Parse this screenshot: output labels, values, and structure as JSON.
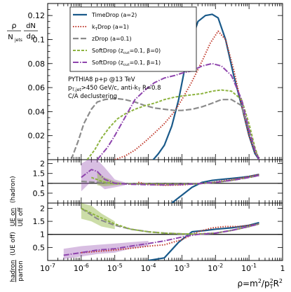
{
  "chart_data": {
    "type": "line",
    "x_scale": "log",
    "xlim": [
      1e-07,
      1
    ],
    "x_tick_labels": [
      "10^-7",
      "10^-6",
      "10^-5",
      "10^-4",
      "10^-3",
      "10^-2",
      "10^-1",
      "1"
    ],
    "xlabel": {
      "main": "ρ=m",
      "sup1": "2",
      "mid": "/p",
      "sub1": "T",
      "sup2": "2",
      "tail": "R",
      "sup3": "2"
    },
    "legend": [
      {
        "name": "TimeDrop (a=2)",
        "color": "#1a5a8a",
        "dash": "solid"
      },
      {
        "name": "kTDrop (a=1)",
        "color": "#c0392b",
        "dash": "dotted"
      },
      {
        "name": "zDrop (a=0.1)",
        "color": "#8c8c8c",
        "dash": "longdash"
      },
      {
        "name": "SoftDrop (zcut=0.1, β=0)",
        "color": "#8db33f",
        "dash": "dashed"
      },
      {
        "name": "SoftDrop (zcut=0.1, β=1)",
        "color": "#8e44ad",
        "dash": "dashdot"
      }
    ],
    "legend_labels": {
      "time": "TimeDrop (a=2)",
      "kt_pre": "k",
      "kt_sub": "T",
      "kt_post": "Drop (a=1)",
      "z": "zDrop (a=0.1)",
      "sd0_pre": "SoftDrop (z",
      "sd0_sub": "cut",
      "sd0_post": "=0.1, β=0)",
      "sd1_pre": "SoftDrop (z",
      "sd1_sub": "cut",
      "sd1_post": "=0.1, β=1)"
    },
    "annotations": {
      "line1": "PYTHIA8 p+p @13 TeV",
      "line2_pre": "p",
      "line2_sub": "T,jet",
      "line2_post": ">450 GeV/c, anti-k",
      "line2_sub2": "T",
      "line2_tail": " R=0.8",
      "line3": "C/A declustering"
    },
    "panels": [
      {
        "id": "main",
        "ylabel": {
          "num_left": "ρ",
          "den_left": "N",
          "den_sub": "jets",
          "num_right": "dN",
          "den_right": "dρ"
        },
        "ylim": [
          0,
          0.13
        ],
        "y_ticks": [
          0.02,
          0.04,
          0.06,
          0.08,
          0.1,
          0.12
        ],
        "y_tick_labels": [
          "0.02",
          "0.04",
          "0.06",
          "0.08",
          "0.1",
          "0.12"
        ],
        "series": [
          {
            "key": "time",
            "x": [
              0.00014,
              0.0002,
              0.0003,
              0.0005,
              0.0008,
              0.0012,
              0.002,
              0.003,
              0.005,
              0.008,
              0.012,
              0.02,
              0.035,
              0.06,
              0.1,
              0.15,
              0.2
            ],
            "y": [
              0,
              0.005,
              0.012,
              0.028,
              0.05,
              0.075,
              0.1,
              0.115,
              0.12,
              0.121,
              0.118,
              0.1,
              0.07,
              0.045,
              0.02,
              0.005,
              0
            ]
          },
          {
            "key": "kt",
            "x": [
              1e-05,
              2e-05,
              4e-05,
              8e-05,
              0.00015,
              0.0003,
              0.0006,
              0.001,
              0.002,
              0.004,
              0.007,
              0.012,
              0.02,
              0.035,
              0.06,
              0.1,
              0.15,
              0.2
            ],
            "y": [
              0,
              0.003,
              0.008,
              0.015,
              0.022,
              0.03,
              0.04,
              0.05,
              0.065,
              0.082,
              0.097,
              0.107,
              0.1,
              0.075,
              0.045,
              0.02,
              0.006,
              0
            ]
          },
          {
            "key": "z",
            "x": [
              5e-07,
              8e-07,
              1.2e-06,
              2e-06,
              3e-06,
              5e-06,
              1e-05,
              2e-05,
              4e-05,
              8e-05,
              0.00015,
              0.0003,
              0.0006,
              0.001,
              0.002,
              0.004,
              0.008,
              0.015,
              0.03,
              0.06,
              0.1,
              0.15,
              0.2
            ],
            "y": [
              0,
              0.015,
              0.03,
              0.042,
              0.048,
              0.05,
              0.051,
              0.05,
              0.048,
              0.045,
              0.043,
              0.042,
              0.041,
              0.041,
              0.042,
              0.044,
              0.047,
              0.05,
              0.05,
              0.045,
              0.025,
              0.008,
              0
            ]
          },
          {
            "key": "sd0",
            "x": [
              1.5e-06,
              2.5e-06,
              4e-06,
              7e-06,
              1.2e-05,
              2e-05,
              4e-05,
              8e-05,
              0.00015,
              0.0003,
              0.0006,
              0.001,
              0.002,
              0.004,
              0.008,
              0.015,
              0.03,
              0.06,
              0.1,
              0.15,
              0.2
            ],
            "y": [
              0,
              0.008,
              0.018,
              0.027,
              0.034,
              0.038,
              0.042,
              0.045,
              0.047,
              0.05,
              0.052,
              0.053,
              0.054,
              0.055,
              0.057,
              0.058,
              0.057,
              0.05,
              0.03,
              0.01,
              0
            ]
          },
          {
            "key": "sd1",
            "x": [
              3e-06,
              6e-06,
              1e-05,
              2e-05,
              4e-05,
              8e-05,
              0.00015,
              0.0003,
              0.0006,
              0.001,
              0.002,
              0.004,
              0.008,
              0.015,
              0.03,
              0.06,
              0.1,
              0.15,
              0.2
            ],
            "y": [
              0,
              0.01,
              0.02,
              0.035,
              0.05,
              0.058,
              0.064,
              0.068,
              0.07,
              0.072,
              0.074,
              0.078,
              0.08,
              0.078,
              0.07,
              0.05,
              0.025,
              0.008,
              0
            ]
          }
        ]
      },
      {
        "id": "ratio-ue",
        "ylabel": {
          "num": "UE on",
          "den": "UE off",
          "suffix": " (hadron)"
        },
        "ylim": [
          0,
          2.2
        ],
        "y_ticks": [
          0.5,
          1,
          1.5,
          2
        ],
        "y_tick_labels": [
          "0.5",
          "1",
          "1.5",
          "2"
        ],
        "reference_line": 1,
        "series": [
          {
            "key": "time",
            "x": [
              0.0005,
              0.001,
              0.002,
              0.004,
              0.008,
              0.015,
              0.03,
              0.06,
              0.1,
              0.2
            ],
            "y": [
              0,
              0.4,
              0.8,
              1.05,
              1.15,
              1.2,
              1.25,
              1.3,
              1.35,
              1.45
            ]
          },
          {
            "key": "kt",
            "x": [
              5e-05,
              0.0001,
              0.0003,
              0.001,
              0.003,
              0.008,
              0.02,
              0.05,
              0.1,
              0.2
            ],
            "y": [
              1.05,
              0.95,
              0.9,
              0.92,
              0.98,
              1.05,
              1.15,
              1.25,
              1.35,
              1.45
            ]
          },
          {
            "key": "z",
            "x": [
              1e-06,
              3e-06,
              1e-05,
              3e-05,
              0.0001,
              0.0003,
              0.001,
              0.003,
              0.01,
              0.03,
              0.1,
              0.2
            ],
            "y": [
              1.1,
              1.05,
              1.0,
              0.98,
              0.97,
              0.96,
              0.96,
              0.98,
              1.05,
              1.15,
              1.3,
              1.4
            ]
          },
          {
            "key": "sd0",
            "x": [
              2e-06,
              5e-06,
              1e-05,
              3e-05,
              0.0001,
              0.0003,
              0.001,
              0.003,
              0.01,
              0.03,
              0.1,
              0.2
            ],
            "y": [
              1.3,
              1.05,
              0.98,
              0.97,
              0.96,
              0.95,
              0.95,
              0.98,
              1.05,
              1.15,
              1.3,
              1.4
            ]
          },
          {
            "key": "sd1",
            "x": [
              1e-06,
              2e-06,
              3e-06,
              5e-06,
              1e-05,
              3e-05,
              0.0001,
              0.0003,
              0.001,
              0.003,
              0.01,
              0.03,
              0.1,
              0.2
            ],
            "y": [
              1.3,
              1.7,
              1.6,
              1.2,
              1.0,
              0.95,
              0.93,
              0.92,
              0.94,
              0.98,
              1.05,
              1.15,
              1.3,
              1.4
            ]
          }
        ],
        "bands": [
          {
            "key": "sd1",
            "x": [
              1e-06,
              2e-06,
              3e-06,
              5e-06,
              1e-05,
              2e-05
            ],
            "lo": [
              0.6,
              1.1,
              1.0,
              0.7,
              0.8,
              0.9
            ],
            "hi": [
              2.0,
              2.3,
              2.2,
              1.8,
              1.2,
              1.05
            ]
          },
          {
            "key": "sd0",
            "x": [
              3e-06,
              5e-06,
              1e-05,
              2e-05
            ],
            "lo": [
              0.9,
              0.85,
              0.9,
              0.95
            ],
            "hi": [
              1.6,
              1.3,
              1.1,
              1.0
            ]
          }
        ]
      },
      {
        "id": "ratio-np",
        "ylabel": {
          "num": "hadron",
          "den": "parton",
          "suffix": " (UE off)"
        },
        "ylim": [
          0,
          2.2
        ],
        "y_ticks": [
          0.5,
          1,
          1.5,
          2
        ],
        "y_tick_labels": [
          "0.5",
          "1",
          "1.5",
          "2"
        ],
        "reference_line": 1,
        "series": [
          {
            "key": "time",
            "x": [
              0.0001,
              0.0003,
              0.0008,
              0.002,
              0.005,
              0.01,
              0.03,
              0.1,
              0.2
            ],
            "y": [
              0,
              0.1,
              0.7,
              1.1,
              1.15,
              1.2,
              1.25,
              1.35,
              1.45
            ]
          },
          {
            "key": "kt",
            "x": [
              1e-06,
              1e-05,
              5e-05,
              0.0001,
              0.0003,
              0.001,
              0.003,
              0.008,
              0.02,
              0.05,
              0.1,
              0.2
            ],
            "y": [
              0.3,
              0.4,
              0.5,
              0.55,
              0.6,
              0.8,
              1.1,
              1.25,
              1.3,
              1.3,
              1.35,
              1.4
            ]
          },
          {
            "key": "z",
            "x": [
              1e-06,
              3e-06,
              1e-05,
              3e-05,
              0.0001,
              0.0003,
              0.001,
              0.003,
              0.01,
              0.03,
              0.1,
              0.2
            ],
            "y": [
              2.0,
              1.6,
              1.35,
              1.2,
              1.1,
              1.05,
              1.02,
              1.0,
              1.05,
              1.15,
              1.3,
              1.4
            ]
          },
          {
            "key": "sd0",
            "x": [
              1e-06,
              3e-06,
              1e-05,
              3e-05,
              0.0001,
              0.0003,
              0.001,
              0.003,
              0.01,
              0.03,
              0.1,
              0.2
            ],
            "y": [
              2.0,
              1.7,
              1.4,
              1.2,
              1.1,
              1.05,
              1.02,
              1.02,
              1.05,
              1.15,
              1.3,
              1.4
            ]
          },
          {
            "key": "sd1",
            "x": [
              3e-07,
              1e-06,
              3e-06,
              1e-05,
              3e-05,
              0.0001,
              0.0003,
              0.001,
              0.003,
              0.01,
              0.03,
              0.1,
              0.2
            ],
            "y": [
              0.2,
              0.3,
              0.4,
              0.45,
              0.55,
              0.65,
              0.75,
              0.9,
              1.0,
              1.05,
              1.15,
              1.3,
              1.4
            ]
          }
        ],
        "bands": [
          {
            "key": "sd1",
            "x": [
              3e-07,
              1e-06,
              3e-06,
              1e-05,
              3e-05,
              0.0001
            ],
            "lo": [
              0.05,
              0.15,
              0.25,
              0.3,
              0.45,
              0.55
            ],
            "hi": [
              0.45,
              0.55,
              0.6,
              0.65,
              0.7,
              0.75
            ]
          },
          {
            "key": "sd0",
            "x": [
              1e-06,
              2e-06,
              4e-06,
              1e-05
            ],
            "lo": [
              1.6,
              1.5,
              1.3,
              1.2
            ],
            "hi": [
              2.2,
              2.1,
              1.8,
              1.5
            ]
          }
        ]
      }
    ]
  }
}
